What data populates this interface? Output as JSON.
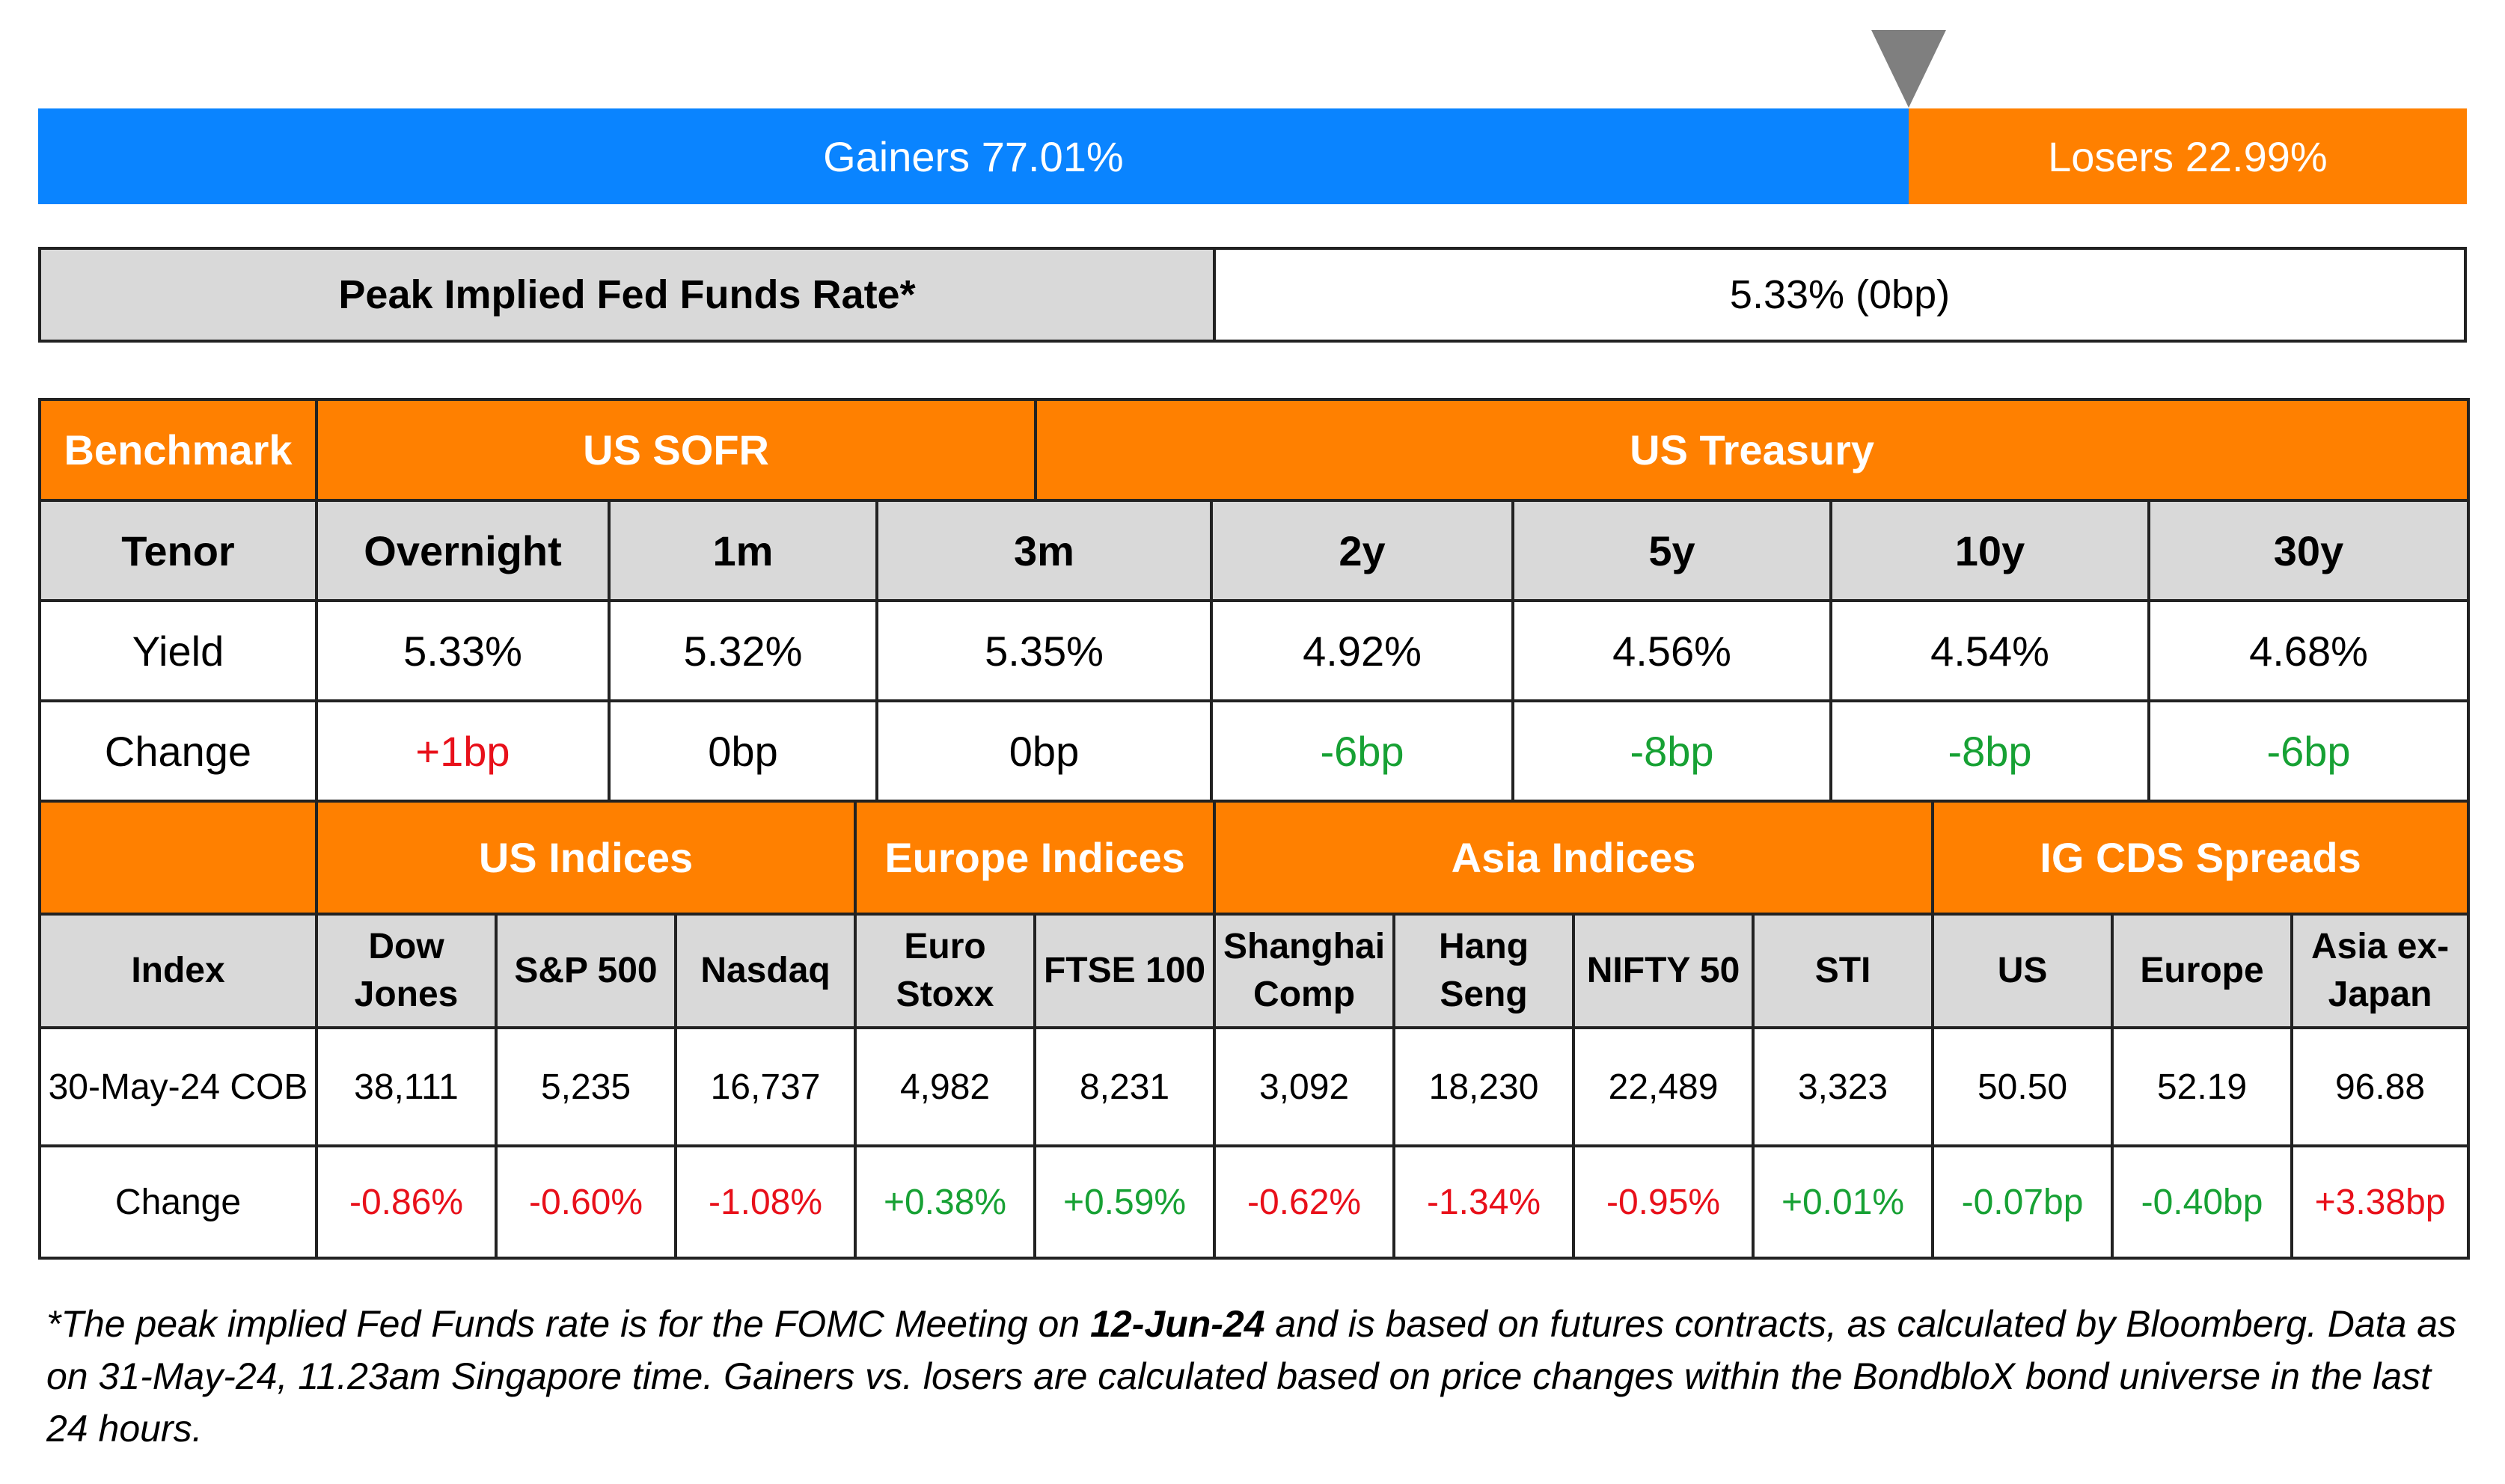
{
  "market_breadth": {
    "gainers_label": "Gainers 77.01%",
    "losers_label": "Losers 22.99%",
    "gainers_fraction": 0.7701,
    "gainers_color": "#0a84ff",
    "losers_color": "#ff8000",
    "marker_icon": "down-triangle-icon"
  },
  "fed_funds": {
    "label": "Peak Implied Fed Funds Rate*",
    "value": "5.33% (0bp)"
  },
  "rates": {
    "benchmark_label": "Benchmark",
    "sofr_label": "US SOFR",
    "treasury_label": "US Treasury",
    "tenor_label": "Tenor",
    "yield_label": "Yield",
    "change_label": "Change",
    "columns": [
      {
        "tenor": "Overnight",
        "yield": "5.33%",
        "change": "+1bp"
      },
      {
        "tenor": "1m",
        "yield": "5.32%",
        "change": "0bp"
      },
      {
        "tenor": "3m",
        "yield": "5.35%",
        "change": "0bp"
      },
      {
        "tenor": "2y",
        "yield": "4.92%",
        "change": "-6bp"
      },
      {
        "tenor": "5y",
        "yield": "4.56%",
        "change": "-8bp"
      },
      {
        "tenor": "10y",
        "yield": "4.54%",
        "change": "-8bp"
      },
      {
        "tenor": "30y",
        "yield": "4.68%",
        "change": "-6bp"
      }
    ]
  },
  "indices": {
    "groups": {
      "us": "US Indices",
      "europe": "Europe Indices",
      "asia": "Asia Indices",
      "cds": "IG CDS Spreads"
    },
    "index_label": "Index",
    "date_label": "30-May-24 COB",
    "change_label": "Change",
    "columns": [
      {
        "name_line1": "Dow",
        "name_line2": "Jones",
        "value": "38,111",
        "change": "-0.86%"
      },
      {
        "name_line1": "S&P 500",
        "name_line2": "",
        "value": "5,235",
        "change": "-0.60%"
      },
      {
        "name_line1": "Nasdaq",
        "name_line2": "",
        "value": "16,737",
        "change": "-1.08%"
      },
      {
        "name_line1": "Euro",
        "name_line2": "Stoxx",
        "value": "4,982",
        "change": "+0.38%"
      },
      {
        "name_line1": "FTSE 100",
        "name_line2": "",
        "value": "8,231",
        "change": "+0.59%"
      },
      {
        "name_line1": "Shanghai",
        "name_line2": "Comp",
        "value": "3,092",
        "change": "-0.62%"
      },
      {
        "name_line1": "Hang",
        "name_line2": "Seng",
        "value": "18,230",
        "change": "-1.34%"
      },
      {
        "name_line1": "NIFTY 50",
        "name_line2": "",
        "value": "22,489",
        "change": "-0.95%"
      },
      {
        "name_line1": "STI",
        "name_line2": "",
        "value": "3,323",
        "change": "+0.01%"
      },
      {
        "name_line1": "US",
        "name_line2": "",
        "value": "50.50",
        "change": "-0.07bp"
      },
      {
        "name_line1": "Europe",
        "name_line2": "",
        "value": "52.19",
        "change": "-0.40bp"
      },
      {
        "name_line1": "Asia ex-",
        "name_line2": "Japan",
        "value": "96.88",
        "change": "+3.38bp"
      }
    ]
  },
  "colors": {
    "header_orange": "#ff8000",
    "header_gray": "#d9d9d9",
    "negative": "#e8101a",
    "positive": "#17a134"
  },
  "footnote": {
    "part1": "*The peak implied Fed Funds rate is for the FOMC Meeting on ",
    "bold_date": "12-Jun-24",
    "part2": " and is based on futures contracts, as calculated by Bloomberg. Data as on 31-May-24, 11.23am Singapore time. Gainers vs. losers are calculated based on price changes within the BondbloX bond universe in the last 24 hours."
  }
}
